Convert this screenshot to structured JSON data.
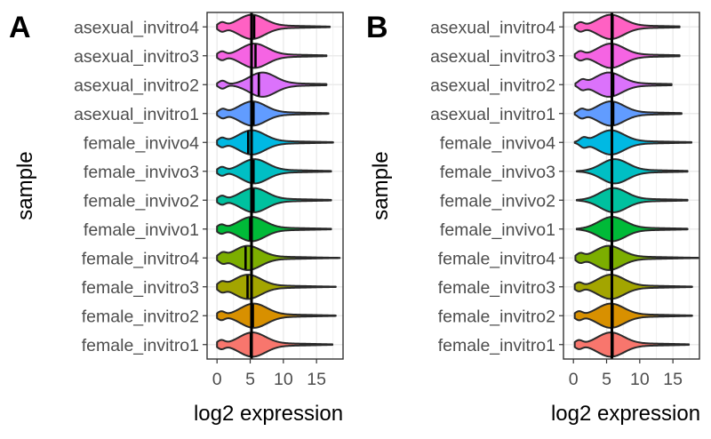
{
  "chart_data": [
    {
      "type": "violin",
      "panel_label": "A",
      "xlabel": "log2 expression",
      "ylabel": "sample",
      "xlim": [
        -1.5,
        19
      ],
      "xticks": [
        0,
        5,
        10,
        15
      ],
      "grid": true,
      "legend": "none",
      "vline": 5.2,
      "series": [
        {
          "category": "asexual_invitro4",
          "color": "#FF61C3",
          "median": 5.6,
          "max": 17,
          "bottom_max": 0.7,
          "mode": 5.2,
          "xstart": 0
        },
        {
          "category": "asexual_invitro3",
          "color": "#F564E3",
          "median": 5.8,
          "max": 16.5,
          "bottom_max": 0.7,
          "mode": 5.6,
          "xstart": 0
        },
        {
          "category": "asexual_invitro2",
          "color": "#DB72FB",
          "median": 6.3,
          "max": 16.5,
          "bottom_max": 0.8,
          "mode": 6.8,
          "xstart": 0
        },
        {
          "category": "asexual_invitro1",
          "color": "#619CFF",
          "median": 5.5,
          "max": 16.8,
          "bottom_max": 0.8,
          "mode": 5.3,
          "xstart": 0
        },
        {
          "category": "female_invivo4",
          "color": "#00B9E3",
          "median": 4.7,
          "max": 17.5,
          "bottom_max": 0.7,
          "mode": 5.2,
          "xstart": 0
        },
        {
          "category": "female_invivo3",
          "color": "#00BFC4",
          "median": 5.5,
          "max": 17.2,
          "bottom_max": 0.7,
          "mode": 5.6,
          "xstart": 0
        },
        {
          "category": "female_invivo2",
          "color": "#00C19F",
          "median": 5.5,
          "max": 17.2,
          "bottom_max": 0.7,
          "mode": 5.5,
          "xstart": 0
        },
        {
          "category": "female_invivo1",
          "color": "#00BA38",
          "median": 5.0,
          "max": 17.2,
          "bottom_max": 0.6,
          "mode": 5.2,
          "xstart": 0
        },
        {
          "category": "female_invitro4",
          "color": "#7CAE00",
          "median": 4.3,
          "max": 18.5,
          "bottom_max": 0.8,
          "mode": 4.6,
          "xstart": 0
        },
        {
          "category": "female_invitro3",
          "color": "#A3A500",
          "median": 4.6,
          "max": 17.9,
          "bottom_max": 0.7,
          "mode": 4.6,
          "xstart": 0
        },
        {
          "category": "female_invitro2",
          "color": "#D89000",
          "median": 5.4,
          "max": 17.9,
          "bottom_max": 0.6,
          "mode": 5.5,
          "xstart": 0
        },
        {
          "category": "female_invitro1",
          "color": "#F8766D",
          "median": 5.1,
          "max": 17.4,
          "bottom_max": 0.6,
          "mode": 5.3,
          "xstart": 0
        }
      ]
    },
    {
      "type": "violin",
      "panel_label": "B",
      "xlabel": "log2 expression",
      "ylabel": "sample",
      "xlim": [
        -1.5,
        19
      ],
      "xticks": [
        0,
        5,
        10,
        15
      ],
      "grid": true,
      "legend": "none",
      "vline": 5.8,
      "series": [
        {
          "category": "asexual_invitro4",
          "color": "#FF61C3",
          "median": 5.9,
          "max": 16,
          "bottom_max": 1.0,
          "mode": 5.6,
          "xstart": 0.2
        },
        {
          "category": "asexual_invitro3",
          "color": "#F564E3",
          "median": 5.9,
          "max": 16,
          "bottom_max": 1.0,
          "mode": 5.6,
          "xstart": 0.2
        },
        {
          "category": "asexual_invitro2",
          "color": "#DB72FB",
          "median": 6.0,
          "max": 14.8,
          "bottom_max": 1.3,
          "mode": 5.3,
          "xstart": 0.3
        },
        {
          "category": "asexual_invitro1",
          "color": "#619CFF",
          "median": 6.0,
          "max": 16.3,
          "bottom_max": 1.2,
          "mode": 5.6,
          "xstart": 0.2
        },
        {
          "category": "female_invivo4",
          "color": "#00B9E3",
          "median": 5.8,
          "max": 17.8,
          "bottom_max": 1.5,
          "mode": 5.6,
          "xstart": 0.2
        },
        {
          "category": "female_invivo3",
          "color": "#00BFC4",
          "median": 5.8,
          "max": 17.2,
          "bottom_max": 0.0,
          "mode": 6.2,
          "xstart": 0.5
        },
        {
          "category": "female_invivo2",
          "color": "#00C19F",
          "median": 5.8,
          "max": 17.2,
          "bottom_max": 0.0,
          "mode": 6.0,
          "xstart": 0.5
        },
        {
          "category": "female_invivo1",
          "color": "#00BA38",
          "median": 5.8,
          "max": 17.2,
          "bottom_max": 0.0,
          "mode": 5.8,
          "xstart": 0.5
        },
        {
          "category": "female_invitro4",
          "color": "#7CAE00",
          "median": 5.6,
          "max": 18.8,
          "bottom_max": 1.0,
          "mode": 5.3,
          "xstart": 0.3
        },
        {
          "category": "female_invitro3",
          "color": "#A3A500",
          "median": 5.8,
          "max": 17.9,
          "bottom_max": 0.8,
          "mode": 5.6,
          "xstart": 0.2
        },
        {
          "category": "female_invitro2",
          "color": "#D89000",
          "median": 5.9,
          "max": 17.9,
          "bottom_max": 0.8,
          "mode": 5.6,
          "xstart": 0.2
        },
        {
          "category": "female_invitro1",
          "color": "#F8766D",
          "median": 5.9,
          "max": 17.4,
          "bottom_max": 0.8,
          "mode": 5.6,
          "xstart": 0.2
        }
      ]
    }
  ]
}
